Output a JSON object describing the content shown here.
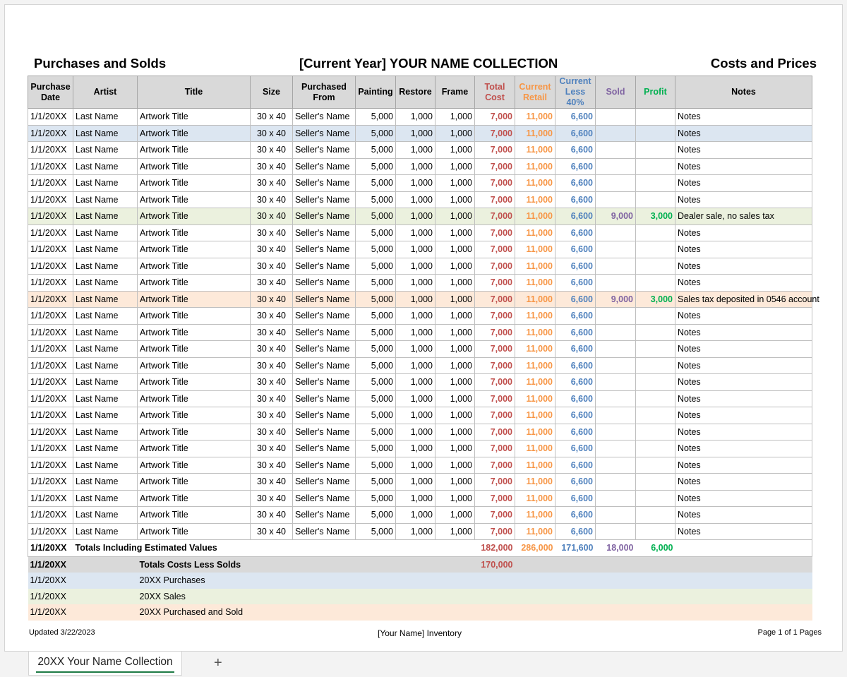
{
  "header": {
    "left": "Purchases and Solds",
    "center": "[Current Year] YOUR NAME COLLECTION",
    "right": "Costs and Prices"
  },
  "columns": {
    "date": "Purchase Date",
    "artist": "Artist",
    "title": "Title",
    "size": "Size",
    "from": "Purchased From",
    "painting": "Painting",
    "restore": "Restore",
    "frame": "Frame",
    "total_cost": "Total Cost",
    "retail": "Current Retail",
    "less": "Current Less 40%",
    "sold": "Sold",
    "profit": "Profit",
    "notes": "Notes"
  },
  "row_template": {
    "date": "1/1/20XX",
    "artist": "Last Name",
    "title": "Artwork Title",
    "size": "30 x 40",
    "from": "Seller's Name",
    "painting": "5,000",
    "restore": "1,000",
    "frame": "1,000",
    "total_cost": "7,000",
    "retail": "11,000",
    "less": "6,600",
    "notes": "Notes"
  },
  "rows": [
    {
      "highlight": "none"
    },
    {
      "highlight": "blue"
    },
    {
      "highlight": "none"
    },
    {
      "highlight": "none"
    },
    {
      "highlight": "none"
    },
    {
      "highlight": "none"
    },
    {
      "highlight": "green",
      "sold": "9,000",
      "profit": "3,000",
      "notes": "Dealer sale, no sales tax"
    },
    {
      "highlight": "none"
    },
    {
      "highlight": "none"
    },
    {
      "highlight": "none"
    },
    {
      "highlight": "none"
    },
    {
      "highlight": "peach",
      "sold": "9,000",
      "profit": "3,000",
      "notes": "Sales tax deposited in 0546 account"
    },
    {
      "highlight": "none"
    },
    {
      "highlight": "none"
    },
    {
      "highlight": "none"
    },
    {
      "highlight": "none"
    },
    {
      "highlight": "none"
    },
    {
      "highlight": "none"
    },
    {
      "highlight": "none"
    },
    {
      "highlight": "none"
    },
    {
      "highlight": "none"
    },
    {
      "highlight": "none"
    },
    {
      "highlight": "none"
    },
    {
      "highlight": "none"
    },
    {
      "highlight": "none"
    },
    {
      "highlight": "none"
    }
  ],
  "totals": {
    "date": "1/1/20XX",
    "label": "Totals Including Estimated Values",
    "total_cost": "182,000",
    "retail": "286,000",
    "less": "171,600",
    "sold": "18,000",
    "profit": "6,000"
  },
  "costs_less_solds": {
    "date": "1/1/20XX",
    "label": "Totals Costs Less Solds",
    "total_cost": "170,000"
  },
  "legend": [
    {
      "date": "1/1/20XX",
      "label": "20XX Purchases",
      "color": "#dce6f1"
    },
    {
      "date": "1/1/20XX",
      "label": "20XX Sales",
      "color": "#ebf1de"
    },
    {
      "date": "1/1/20XX",
      "label": "20XX Purchased and Sold",
      "color": "#fde9d9"
    }
  ],
  "footer": {
    "left": "Updated 3/22/2023",
    "center": "[Your Name] Inventory",
    "right": "Page 1 of 1 Pages"
  },
  "sheet_tabs": {
    "active": "20XX Your Name Collection",
    "add_icon": "+"
  },
  "colors": {
    "total_cost": "#c0504d",
    "retail": "#f79646",
    "less": "#4f81bd",
    "sold": "#8064a2",
    "profit": "#00b050",
    "header_bg": "#d9d9d9"
  }
}
